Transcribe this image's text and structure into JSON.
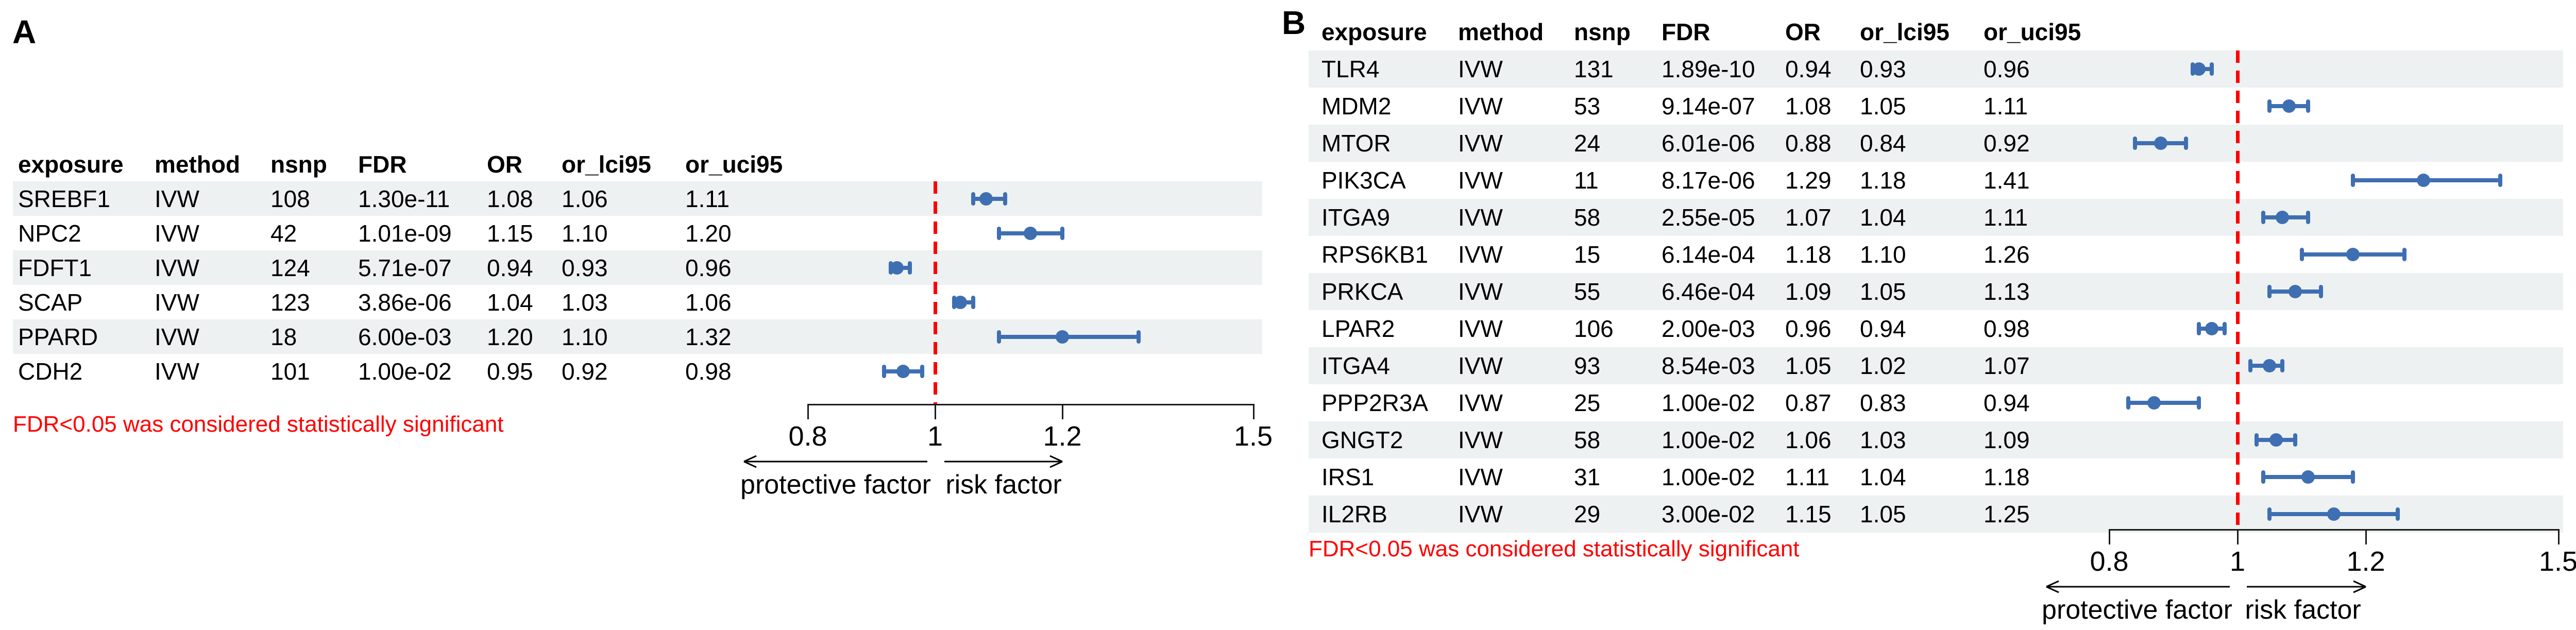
{
  "colors": {
    "marker_blue": "#3e6fb2",
    "reference_line_red": "#ff0000",
    "note_red": "#ff0000",
    "row_band_gray": "#eef1f1",
    "text_black": "#000000",
    "axis_black": "#1a1a1a"
  },
  "chart_data": [
    {
      "type": "scatter",
      "variant": "forest-plot",
      "panel_label": "A",
      "columns": [
        "exposure",
        "method",
        "nsnp",
        "FDR",
        "OR",
        "or_lci95",
        "or_uci95"
      ],
      "rows": [
        {
          "exposure": "SREBF1",
          "method": "IVW",
          "nsnp": "108",
          "FDR": "1.30e-11",
          "OR": "1.08",
          "or_lci95": "1.06",
          "or_uci95": "1.11"
        },
        {
          "exposure": "NPC2",
          "method": "IVW",
          "nsnp": "42",
          "FDR": "1.01e-09",
          "OR": "1.15",
          "or_lci95": "1.10",
          "or_uci95": "1.20"
        },
        {
          "exposure": "FDFT1",
          "method": "IVW",
          "nsnp": "124",
          "FDR": "5.71e-07",
          "OR": "0.94",
          "or_lci95": "0.93",
          "or_uci95": "0.96"
        },
        {
          "exposure": "SCAP",
          "method": "IVW",
          "nsnp": "123",
          "FDR": "3.86e-06",
          "OR": "1.04",
          "or_lci95": "1.03",
          "or_uci95": "1.06"
        },
        {
          "exposure": "PPARD",
          "method": "IVW",
          "nsnp": "18",
          "FDR": "6.00e-03",
          "OR": "1.20",
          "or_lci95": "1.10",
          "or_uci95": "1.32"
        },
        {
          "exposure": "CDH2",
          "method": "IVW",
          "nsnp": "101",
          "FDR": "1.00e-02",
          "OR": "0.95",
          "or_lci95": "0.92",
          "or_uci95": "0.98"
        }
      ],
      "note": "FDR<0.05 was considered statistically significant",
      "x_axis": {
        "ticks": [
          0.8,
          1,
          1.2,
          1.5
        ],
        "tick_labels": [
          "0.8",
          "1",
          "1.2",
          "1.5"
        ],
        "range": [
          0.8,
          1.5
        ],
        "reference_line": 1,
        "left_arrow_label": "protective factor",
        "right_arrow_label": "risk factor"
      }
    },
    {
      "type": "scatter",
      "variant": "forest-plot",
      "panel_label": "B",
      "columns": [
        "exposure",
        "method",
        "nsnp",
        "FDR",
        "OR",
        "or_lci95",
        "or_uci95"
      ],
      "rows": [
        {
          "exposure": "TLR4",
          "method": "IVW",
          "nsnp": "131",
          "FDR": "1.89e-10",
          "OR": "0.94",
          "or_lci95": "0.93",
          "or_uci95": "0.96"
        },
        {
          "exposure": "MDM2",
          "method": "IVW",
          "nsnp": "53",
          "FDR": "9.14e-07",
          "OR": "1.08",
          "or_lci95": "1.05",
          "or_uci95": "1.11"
        },
        {
          "exposure": "MTOR",
          "method": "IVW",
          "nsnp": "24",
          "FDR": "6.01e-06",
          "OR": "0.88",
          "or_lci95": "0.84",
          "or_uci95": "0.92"
        },
        {
          "exposure": "PIK3CA",
          "method": "IVW",
          "nsnp": "11",
          "FDR": "8.17e-06",
          "OR": "1.29",
          "or_lci95": "1.18",
          "or_uci95": "1.41"
        },
        {
          "exposure": "ITGA9",
          "method": "IVW",
          "nsnp": "58",
          "FDR": "2.55e-05",
          "OR": "1.07",
          "or_lci95": "1.04",
          "or_uci95": "1.11"
        },
        {
          "exposure": "RPS6KB1",
          "method": "IVW",
          "nsnp": "15",
          "FDR": "6.14e-04",
          "OR": "1.18",
          "or_lci95": "1.10",
          "or_uci95": "1.26"
        },
        {
          "exposure": "PRKCA",
          "method": "IVW",
          "nsnp": "55",
          "FDR": "6.46e-04",
          "OR": "1.09",
          "or_lci95": "1.05",
          "or_uci95": "1.13"
        },
        {
          "exposure": "LPAR2",
          "method": "IVW",
          "nsnp": "106",
          "FDR": "2.00e-03",
          "OR": "0.96",
          "or_lci95": "0.94",
          "or_uci95": "0.98"
        },
        {
          "exposure": "ITGA4",
          "method": "IVW",
          "nsnp": "93",
          "FDR": "8.54e-03",
          "OR": "1.05",
          "or_lci95": "1.02",
          "or_uci95": "1.07"
        },
        {
          "exposure": "PPP2R3A",
          "method": "IVW",
          "nsnp": "25",
          "FDR": "1.00e-02",
          "OR": "0.87",
          "or_lci95": "0.83",
          "or_uci95": "0.94"
        },
        {
          "exposure": "GNGT2",
          "method": "IVW",
          "nsnp": "58",
          "FDR": "1.00e-02",
          "OR": "1.06",
          "or_lci95": "1.03",
          "or_uci95": "1.09"
        },
        {
          "exposure": "IRS1",
          "method": "IVW",
          "nsnp": "31",
          "FDR": "1.00e-02",
          "OR": "1.11",
          "or_lci95": "1.04",
          "or_uci95": "1.18"
        },
        {
          "exposure": "IL2RB",
          "method": "IVW",
          "nsnp": "29",
          "FDR": "3.00e-02",
          "OR": "1.15",
          "or_lci95": "1.05",
          "or_uci95": "1.25"
        }
      ],
      "note": "FDR<0.05 was considered statistically significant",
      "x_axis": {
        "ticks": [
          0.8,
          1,
          1.2,
          1.5
        ],
        "tick_labels": [
          "0.8",
          "1",
          "1.2",
          "1.5"
        ],
        "range": [
          0.8,
          1.5
        ],
        "reference_line": 1,
        "left_arrow_label": "protective factor",
        "right_arrow_label": "risk factor"
      }
    }
  ]
}
